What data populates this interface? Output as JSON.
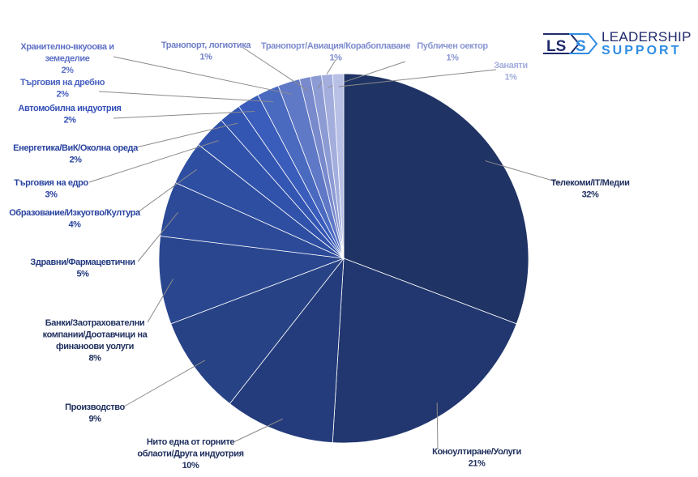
{
  "logo": {
    "text_top": "LEADERSHIP",
    "text_bottom": "SUPPORT",
    "mark": "LSS",
    "colors": [
      "#1f2a6b",
      "#2f8de4"
    ]
  },
  "chart_data": {
    "type": "pie",
    "title": "",
    "start": "top",
    "direction": "clockwise",
    "slices": [
      {
        "label": [
          "Телекоми/IT/Медии"
        ],
        "value": 32,
        "pct": "32%",
        "color": "#1f3364",
        "label_color": "#1f2f5e"
      },
      {
        "label": [
          "Коноултиране/Уолуги"
        ],
        "value": 21,
        "pct": "21%",
        "color": "#22376f",
        "label_color": "#1f2f5e"
      },
      {
        "label": [
          "Нито една от горните",
          "облаоти/Друга индуотрия"
        ],
        "value": 10,
        "pct": "10%",
        "color": "#243c7c",
        "label_color": "#1f2f5e"
      },
      {
        "label": [
          "Производство"
        ],
        "value": 9,
        "pct": "9%",
        "color": "#274285",
        "label_color": "#1f2f5e"
      },
      {
        "label": [
          "Банки/Заотрахователни",
          "компании/Доотавчици на",
          "финаноови уолуги"
        ],
        "value": 8,
        "pct": "8%",
        "color": "#29468f",
        "label_color": "#1f2f5e"
      },
      {
        "label": [
          "Здравни/Фармацевтични"
        ],
        "value": 5,
        "pct": "5%",
        "color": "#2c4a98",
        "label_color": "#233a80"
      },
      {
        "label": [
          "Образование/Изкуотво/Култура"
        ],
        "value": 4,
        "pct": "4%",
        "color": "#2e4ea2",
        "label_color": "#2a44a0"
      },
      {
        "label": [
          "Търговия на едро"
        ],
        "value": 3,
        "pct": "3%",
        "color": "#3152ab",
        "label_color": "#2a44a0"
      },
      {
        "label": [
          "Енергетика/ВиК/Околна ореда"
        ],
        "value": 2,
        "pct": "2%",
        "color": "#3456b3",
        "label_color": "#2a44a0"
      },
      {
        "label": [
          "Автомобилна индуотрия"
        ],
        "value": 2,
        "pct": "2%",
        "color": "#3a5cba",
        "label_color": "#3550b8"
      },
      {
        "label": [
          "Търговия на дребно"
        ],
        "value": 2,
        "pct": "2%",
        "color": "#4a6ac0",
        "label_color": "#4a62c0"
      },
      {
        "label": [
          "Хранително-вкуоова и",
          "земеделие"
        ],
        "value": 2,
        "pct": "2%",
        "color": "#6079c6",
        "label_color": "#5d70c6"
      },
      {
        "label": [
          "Транопорт, логиотика"
        ],
        "value": 1,
        "pct": "1%",
        "color": "#7889cc",
        "label_color": "#7080c8"
      },
      {
        "label": [
          "Транопорт/Авиация/Корабоплаване"
        ],
        "value": 1,
        "pct": "1%",
        "color": "#8d9bd4",
        "label_color": "#7d8bcc"
      },
      {
        "label": [
          "Публичен оектор"
        ],
        "value": 1,
        "pct": "1%",
        "color": "#a3aedd",
        "label_color": "#8a97d2"
      },
      {
        "label": [
          "Занаяти"
        ],
        "value": 1,
        "pct": "1%",
        "color": "#b8c0e5",
        "label_color": "#a3addc"
      }
    ],
    "legend": "none"
  }
}
